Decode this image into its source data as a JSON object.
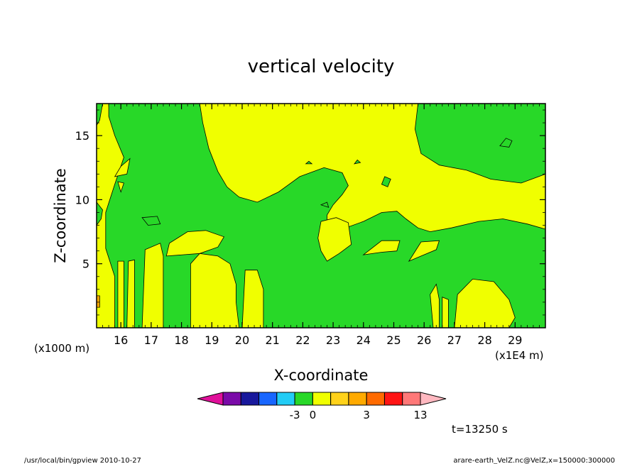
{
  "chart_data": {
    "type": "heatmap",
    "title": "vertical velocity",
    "xlabel": "X-coordinate",
    "ylabel": "Z-coordinate",
    "x_unit": "(x1E4 m)",
    "y_unit": "(x1000 m)",
    "xlim": [
      15.2,
      30
    ],
    "ylim": [
      0,
      17.5
    ],
    "x_ticks": [
      16,
      17,
      18,
      19,
      20,
      21,
      22,
      23,
      24,
      25,
      26,
      27,
      28,
      29
    ],
    "y_ticks": [
      5,
      10,
      15
    ],
    "colorbar": {
      "colors": [
        "#e0109a",
        "#7a0aa8",
        "#18189c",
        "#1866ff",
        "#22ccf5",
        "#28d828",
        "#f0ff00",
        "#ffd21a",
        "#ffaa00",
        "#ff6a00",
        "#ff1414",
        "#ff7878",
        "#ffb8c0"
      ],
      "tick_labels": [
        {
          "label": "-3",
          "index": 5
        },
        {
          "label": "0",
          "index": 6
        },
        {
          "label": "3",
          "index": 9
        },
        {
          "label": "13",
          "index": 12
        }
      ]
    },
    "regions": {
      "background_value_color": "#f0ff00",
      "green_value_color": "#28d828",
      "orange_value_color": "#ffaa00",
      "green_areas": [
        [
          [
            15.6,
            17.5
          ],
          [
            18.6,
            17.5
          ],
          [
            18.7,
            16
          ],
          [
            18.9,
            14
          ],
          [
            19.2,
            12.2
          ],
          [
            19.5,
            11
          ],
          [
            19.9,
            10.2
          ],
          [
            20.5,
            9.8
          ],
          [
            21.2,
            10.6
          ],
          [
            21.9,
            11.8
          ],
          [
            22.7,
            12.5
          ],
          [
            23.3,
            12.1
          ],
          [
            23.5,
            11.1
          ],
          [
            23.3,
            10.4
          ],
          [
            23,
            9.6
          ],
          [
            22.8,
            8.8
          ],
          [
            22.8,
            8
          ],
          [
            23.3,
            7.7
          ],
          [
            24,
            8.3
          ],
          [
            24.6,
            9
          ],
          [
            25.1,
            9.1
          ],
          [
            25.4,
            8.5
          ],
          [
            25.8,
            7.8
          ],
          [
            26.2,
            7.5
          ],
          [
            26.9,
            7.8
          ],
          [
            27.8,
            8.3
          ],
          [
            28.6,
            8.5
          ],
          [
            29.4,
            8.1
          ],
          [
            30,
            7.7
          ],
          [
            30,
            0
          ],
          [
            15.8,
            0
          ],
          [
            15.8,
            4
          ],
          [
            15.5,
            6.2
          ],
          [
            15.5,
            9
          ],
          [
            15.8,
            11.2
          ],
          [
            16.1,
            13.3
          ],
          [
            15.8,
            15
          ],
          [
            15.6,
            16.5
          ]
        ],
        [
          [
            25.8,
            17.5
          ],
          [
            30,
            17.5
          ],
          [
            30,
            12
          ],
          [
            29.2,
            11.3
          ],
          [
            28.2,
            11.6
          ],
          [
            27.4,
            12.3
          ],
          [
            26.5,
            12.7
          ],
          [
            25.9,
            13.6
          ],
          [
            25.7,
            15.5
          ]
        ],
        [
          [
            15.2,
            17.5
          ],
          [
            15.4,
            17.5
          ],
          [
            15.3,
            16.2
          ],
          [
            15.2,
            15.8
          ]
        ],
        [
          [
            15.2,
            9.8
          ],
          [
            15.4,
            9.2
          ],
          [
            15.35,
            8.5
          ],
          [
            15.2,
            8
          ]
        ]
      ],
      "yellow_areas": [
        [
          [
            17.5,
            5.6
          ],
          [
            18.6,
            5.8
          ],
          [
            19.2,
            6.3
          ],
          [
            19.4,
            7.1
          ],
          [
            18.8,
            7.6
          ],
          [
            18.2,
            7.5
          ],
          [
            17.6,
            6.6
          ]
        ],
        [
          [
            18.3,
            0
          ],
          [
            18.3,
            5
          ],
          [
            18.6,
            5.8
          ],
          [
            19.2,
            5.6
          ],
          [
            19.6,
            5
          ],
          [
            19.8,
            3.4
          ],
          [
            19.8,
            2
          ],
          [
            19.9,
            0
          ]
        ],
        [
          [
            20.0,
            0
          ],
          [
            20.1,
            4.5
          ],
          [
            20.5,
            4.5
          ],
          [
            20.7,
            3
          ],
          [
            20.7,
            0
          ]
        ],
        [
          [
            15.9,
            0
          ],
          [
            15.9,
            5.2
          ],
          [
            16.1,
            5.2
          ],
          [
            16.1,
            0
          ]
        ],
        [
          [
            16.2,
            0
          ],
          [
            16.25,
            5.2
          ],
          [
            16.45,
            5.3
          ],
          [
            16.45,
            0
          ]
        ],
        [
          [
            16.7,
            0
          ],
          [
            16.8,
            6.1
          ],
          [
            17.3,
            6.6
          ],
          [
            17.4,
            5.6
          ],
          [
            17.4,
            0
          ]
        ],
        [
          [
            22.8,
            5.2
          ],
          [
            23.2,
            5.8
          ],
          [
            23.6,
            6.5
          ],
          [
            23.5,
            8.2
          ],
          [
            23.1,
            8.6
          ],
          [
            22.6,
            8.3
          ],
          [
            22.5,
            7.0
          ],
          [
            22.6,
            6.0
          ]
        ],
        [
          [
            24.0,
            5.7
          ],
          [
            24.6,
            6.8
          ],
          [
            25.2,
            6.8
          ],
          [
            25.1,
            6.0
          ],
          [
            24.6,
            5.9
          ]
        ],
        [
          [
            25.5,
            5.2
          ],
          [
            25.9,
            6.7
          ],
          [
            26.5,
            6.8
          ],
          [
            26.4,
            6.1
          ],
          [
            25.9,
            5.6
          ]
        ],
        [
          [
            27.0,
            0
          ],
          [
            27.1,
            2.6
          ],
          [
            27.6,
            3.8
          ],
          [
            28.3,
            3.6
          ],
          [
            28.8,
            2.2
          ],
          [
            29.0,
            0.8
          ],
          [
            28.8,
            0
          ]
        ],
        [
          [
            26.6,
            0
          ],
          [
            26.6,
            2.4
          ],
          [
            26.8,
            2.2
          ],
          [
            26.8,
            0
          ]
        ],
        [
          [
            26.3,
            0
          ],
          [
            26.2,
            2.6
          ],
          [
            26.4,
            3.4
          ],
          [
            26.5,
            2.2
          ],
          [
            26.5,
            0
          ]
        ],
        [
          [
            15.8,
            11.8
          ],
          [
            16.0,
            12.6
          ],
          [
            16.3,
            13.2
          ],
          [
            16.2,
            12.0
          ]
        ],
        [
          [
            15.9,
            11.4
          ],
          [
            16.1,
            11.3
          ],
          [
            16.0,
            10.6
          ]
        ]
      ],
      "green_islands_in_yellow": [
        [
          [
            16.7,
            8.6
          ],
          [
            17.2,
            8.7
          ],
          [
            17.3,
            8.1
          ],
          [
            16.9,
            8.0
          ]
        ],
        [
          [
            28.5,
            14.2
          ],
          [
            28.7,
            14.8
          ],
          [
            28.9,
            14.6
          ],
          [
            28.8,
            14.1
          ]
        ],
        [
          [
            24.6,
            11.2
          ],
          [
            24.7,
            11.8
          ],
          [
            24.9,
            11.6
          ],
          [
            24.8,
            11.0
          ]
        ],
        [
          [
            22.6,
            9.6
          ],
          [
            22.8,
            9.8
          ],
          [
            22.85,
            9.4
          ]
        ],
        [
          [
            23.7,
            12.8
          ],
          [
            23.8,
            13.1
          ],
          [
            23.9,
            12.9
          ]
        ],
        [
          [
            22.1,
            12.8
          ],
          [
            22.2,
            13.0
          ],
          [
            22.3,
            12.8
          ]
        ]
      ],
      "orange_areas": [
        [
          [
            15.2,
            1.6
          ],
          [
            15.3,
            1.6
          ],
          [
            15.3,
            2.5
          ],
          [
            15.2,
            2.5
          ]
        ]
      ]
    },
    "grid": false,
    "legend": "bottom-center"
  },
  "time_label": "t=13250 s",
  "footer": {
    "left": "/usr/local/bin/gpview   2010-10-27",
    "right": "arare-earth_VelZ.nc@VelZ,x=150000:300000"
  }
}
